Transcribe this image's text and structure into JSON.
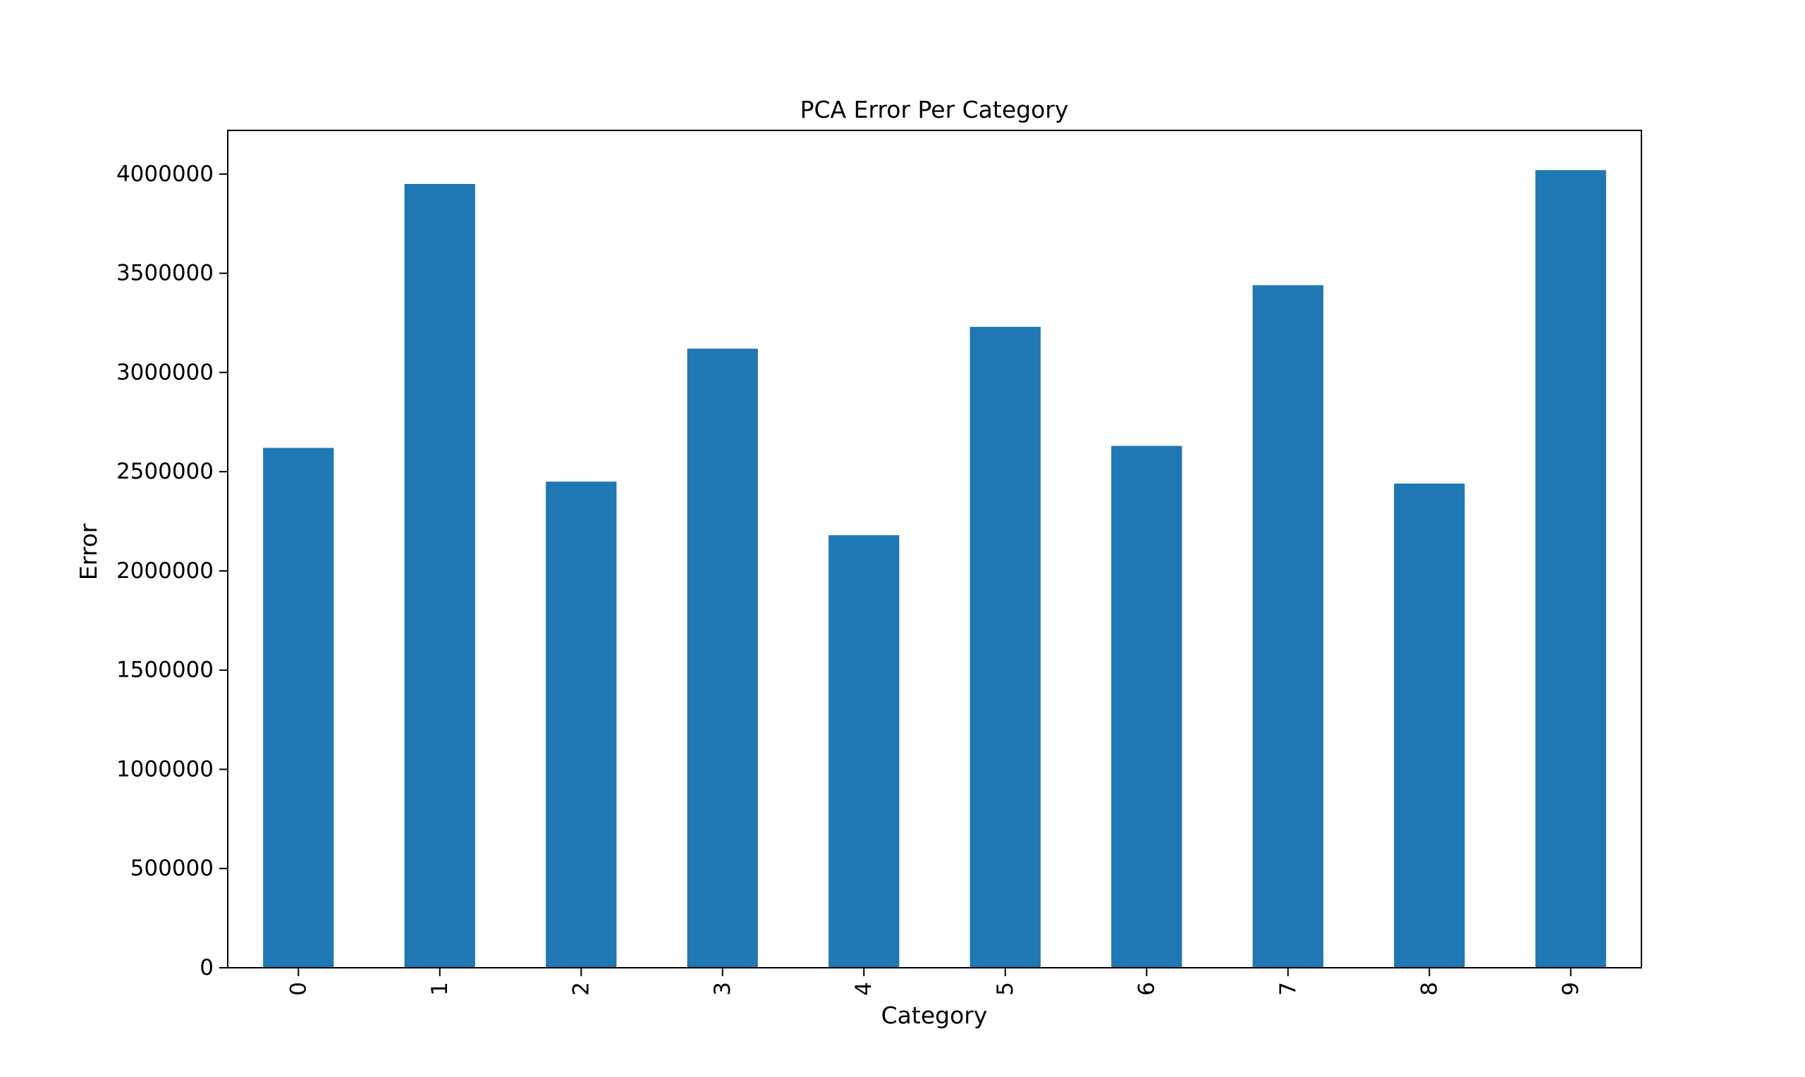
{
  "chart_data": {
    "type": "bar",
    "title": "PCA Error Per Category",
    "xlabel": "Category",
    "ylabel": "Error",
    "categories": [
      "0",
      "1",
      "2",
      "3",
      "4",
      "5",
      "6",
      "7",
      "8",
      "9"
    ],
    "values": [
      2620000,
      3950000,
      2450000,
      3120000,
      2180000,
      3230000,
      2630000,
      3440000,
      2440000,
      4020000
    ],
    "ylim": [
      0,
      4220000
    ],
    "yticks": [
      0,
      500000,
      1000000,
      1500000,
      2000000,
      2500000,
      3000000,
      3500000,
      4000000
    ],
    "ytick_labels": [
      "0",
      "500000",
      "1000000",
      "1500000",
      "2000000",
      "2500000",
      "3000000",
      "3500000",
      "4000000"
    ],
    "bar_color": "#1f77b4",
    "grid": false,
    "legend": "none",
    "xtick_rotation": "vertical"
  }
}
